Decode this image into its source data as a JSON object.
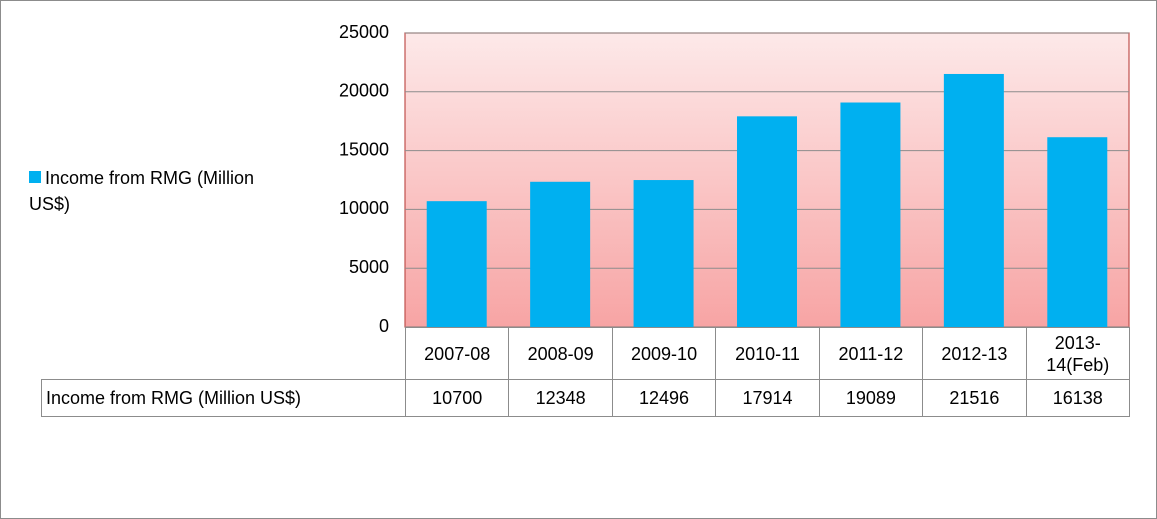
{
  "chart_data": {
    "type": "bar",
    "categories": [
      "2007-08",
      "2008-09",
      "2009-10",
      "2010-11",
      "2011-12",
      "2012-13",
      "2013-14(Feb)"
    ],
    "series": [
      {
        "name": "Income from RMG (Million US$)",
        "color": "#00b0f0",
        "values": [
          10700,
          12348,
          12496,
          17914,
          19089,
          21516,
          16138
        ]
      }
    ],
    "ylim": [
      0,
      25000
    ],
    "yticks": [
      0,
      5000,
      10000,
      15000,
      20000,
      25000
    ],
    "grid": true,
    "legend": "left"
  }
}
